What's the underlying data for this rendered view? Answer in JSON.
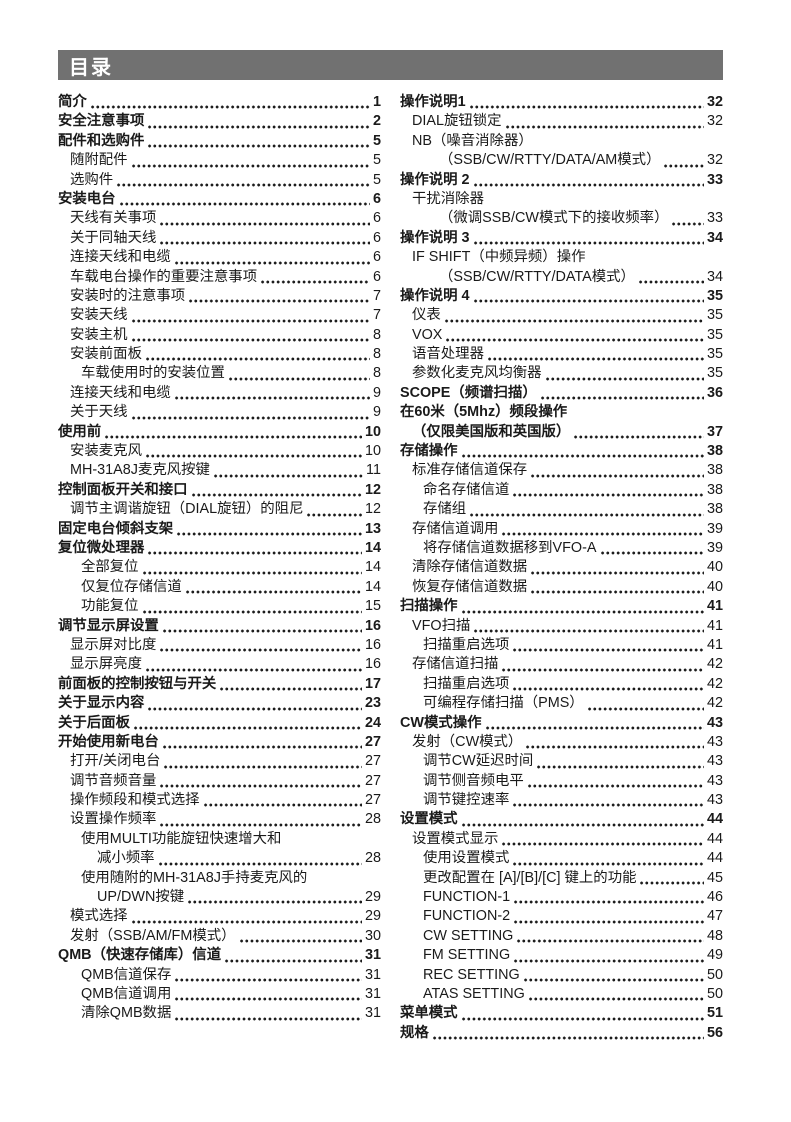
{
  "header": {
    "title": "目录",
    "bar_color": "#717171",
    "text_color": "#ffffff"
  },
  "toc": {
    "left": [
      {
        "label": "简介",
        "page": "1",
        "level": 0,
        "bold": true
      },
      {
        "label": "安全注意事项",
        "page": "2",
        "level": 0,
        "bold": true
      },
      {
        "label": "配件和选购件",
        "page": "5",
        "level": 0,
        "bold": true
      },
      {
        "label": "随附配件",
        "page": "5",
        "level": 1,
        "bold": false
      },
      {
        "label": "选购件",
        "page": "5",
        "level": 1,
        "bold": false
      },
      {
        "label": "安装电台",
        "page": "6",
        "level": 0,
        "bold": true
      },
      {
        "label": "天线有关事项",
        "page": "6",
        "level": 1,
        "bold": false
      },
      {
        "label": "关于同轴天线",
        "page": "6",
        "level": 1,
        "bold": false
      },
      {
        "label": "连接天线和电缆",
        "page": "6",
        "level": 1,
        "bold": false
      },
      {
        "label": "车载电台操作的重要注意事项",
        "page": "6",
        "level": 1,
        "bold": false
      },
      {
        "label": "安装时的注意事项",
        "page": "7",
        "level": 1,
        "bold": false
      },
      {
        "label": "安装天线",
        "page": "7",
        "level": 1,
        "bold": false
      },
      {
        "label": "安装主机",
        "page": "8",
        "level": 1,
        "bold": false
      },
      {
        "label": "安装前面板",
        "page": "8",
        "level": 1,
        "bold": false
      },
      {
        "label": "车载使用时的安装位置",
        "page": "8",
        "level": 2,
        "bold": false
      },
      {
        "label": "连接天线和电缆",
        "page": "9",
        "level": 1,
        "bold": false
      },
      {
        "label": "关于天线",
        "page": "9",
        "level": 1,
        "bold": false
      },
      {
        "label": "使用前",
        "page": "10",
        "level": 0,
        "bold": true
      },
      {
        "label": "安装麦克风",
        "page": "10",
        "level": 1,
        "bold": false
      },
      {
        "label": "MH-31A8J麦克风按键",
        "page": "11",
        "level": 1,
        "bold": false
      },
      {
        "label": "控制面板开关和接口",
        "page": "12",
        "level": 0,
        "bold": true
      },
      {
        "label": "调节主调谐旋钮（DIAL旋钮）的阻尼",
        "page": "12",
        "level": 1,
        "bold": false
      },
      {
        "label": "固定电台倾斜支架",
        "page": "13",
        "level": 0,
        "bold": true
      },
      {
        "label": "复位微处理器",
        "page": "14",
        "level": 0,
        "bold": true
      },
      {
        "label": "全部复位",
        "page": "14",
        "level": 2,
        "bold": false
      },
      {
        "label": "仅复位存储信道",
        "page": "14",
        "level": 2,
        "bold": false
      },
      {
        "label": "功能复位",
        "page": "15",
        "level": 2,
        "bold": false
      },
      {
        "label": "调节显示屏设置",
        "page": "16",
        "level": 0,
        "bold": true
      },
      {
        "label": "显示屏对比度",
        "page": "16",
        "level": 1,
        "bold": false
      },
      {
        "label": "显示屏亮度",
        "page": "16",
        "level": 1,
        "bold": false
      },
      {
        "label": "前面板的控制按钮与开关",
        "page": "17",
        "level": 0,
        "bold": true
      },
      {
        "label": "关于显示内容",
        "page": "23",
        "level": 0,
        "bold": true
      },
      {
        "label": "关于后面板",
        "page": "24",
        "level": 0,
        "bold": true
      },
      {
        "label": "开始使用新电台",
        "page": "27",
        "level": 0,
        "bold": true
      },
      {
        "label": "打开/关闭电台",
        "page": "27",
        "level": 1,
        "bold": false
      },
      {
        "label": "调节音频音量",
        "page": "27",
        "level": 1,
        "bold": false
      },
      {
        "label": "操作频段和模式选择",
        "page": "27",
        "level": 1,
        "bold": false
      },
      {
        "label": "设置操作频率",
        "page": "28",
        "level": 1,
        "bold": false
      },
      {
        "label": "使用MULTI功能旋钮快速增大和",
        "page": null,
        "level": 2,
        "bold": false
      },
      {
        "label": "减小频率",
        "page": "28",
        "level": 3,
        "bold": false
      },
      {
        "label": "使用随附的MH-31A8J手持麦克风的",
        "page": null,
        "level": 2,
        "bold": false
      },
      {
        "label": "UP/DWN按键",
        "page": "29",
        "level": 3,
        "bold": false
      },
      {
        "label": "模式选择",
        "page": "29",
        "level": 1,
        "bold": false
      },
      {
        "label": "发射（SSB/AM/FM模式）",
        "page": "30",
        "level": 1,
        "bold": false
      },
      {
        "label": "QMB（快速存储库）信道",
        "page": "31",
        "level": 0,
        "bold": true
      },
      {
        "label": "QMB信道保存",
        "page": "31",
        "level": 2,
        "bold": false
      },
      {
        "label": "QMB信道调用",
        "page": "31",
        "level": 2,
        "bold": false
      },
      {
        "label": "清除QMB数据",
        "page": "31",
        "level": 2,
        "bold": false
      }
    ],
    "right": [
      {
        "label": "操作说明1",
        "page": "32",
        "level": 0,
        "bold": true
      },
      {
        "label": "DIAL旋钮锁定",
        "page": "32",
        "level": 1,
        "bold": false
      },
      {
        "label": "NB（噪音消除器）",
        "page": null,
        "level": 1,
        "bold": false
      },
      {
        "label": "（SSB/CW/RTTY/DATA/AM模式）",
        "page": "32",
        "level": 3,
        "bold": false
      },
      {
        "label": "操作说明 2",
        "page": "33",
        "level": 0,
        "bold": true
      },
      {
        "label": "干扰消除器",
        "page": null,
        "level": 1,
        "bold": false
      },
      {
        "label": "（微调SSB/CW模式下的接收频率）",
        "page": "33",
        "level": 3,
        "bold": false
      },
      {
        "label": "操作说明 3",
        "page": "34",
        "level": 0,
        "bold": true
      },
      {
        "label": "IF SHIFT（中频异频）操作",
        "page": null,
        "level": 1,
        "bold": false
      },
      {
        "label": "（SSB/CW/RTTY/DATA模式）",
        "page": "34",
        "level": 3,
        "bold": false
      },
      {
        "label": "操作说明 4",
        "page": "35",
        "level": 0,
        "bold": true
      },
      {
        "label": "仪表",
        "page": "35",
        "level": 1,
        "bold": false
      },
      {
        "label": "VOX",
        "page": "35",
        "level": 1,
        "bold": false
      },
      {
        "label": "语音处理器",
        "page": "35",
        "level": 1,
        "bold": false
      },
      {
        "label": "参数化麦克风均衡器",
        "page": "35",
        "level": 1,
        "bold": false
      },
      {
        "label": "SCOPE（频谱扫描）",
        "page": "36",
        "level": 0,
        "bold": true
      },
      {
        "label": "在60米（5Mhz）频段操作",
        "page": null,
        "level": 0,
        "bold": true
      },
      {
        "label": "（仅限美国版和英国版）",
        "page": "37",
        "level": 1,
        "bold": true
      },
      {
        "label": "存储操作",
        "page": "38",
        "level": 0,
        "bold": true
      },
      {
        "label": "标准存储信道保存",
        "page": "38",
        "level": 1,
        "bold": false
      },
      {
        "label": "命名存储信道",
        "page": "38",
        "level": 2,
        "bold": false
      },
      {
        "label": "存储组",
        "page": "38",
        "level": 2,
        "bold": false
      },
      {
        "label": "存储信道调用",
        "page": "39",
        "level": 1,
        "bold": false
      },
      {
        "label": "将存储信道数据移到VFO-A",
        "page": "39",
        "level": 2,
        "bold": false
      },
      {
        "label": "清除存储信道数据",
        "page": "40",
        "level": 1,
        "bold": false
      },
      {
        "label": "恢复存储信道数据",
        "page": "40",
        "level": 1,
        "bold": false
      },
      {
        "label": "扫描操作",
        "page": "41",
        "level": 0,
        "bold": true
      },
      {
        "label": "VFO扫描",
        "page": "41",
        "level": 1,
        "bold": false
      },
      {
        "label": "扫描重启选项",
        "page": "41",
        "level": 2,
        "bold": false
      },
      {
        "label": "存储信道扫描",
        "page": "42",
        "level": 1,
        "bold": false
      },
      {
        "label": "扫描重启选项",
        "page": "42",
        "level": 2,
        "bold": false
      },
      {
        "label": "可编程存储扫描（PMS）",
        "page": "42",
        "level": 2,
        "bold": false
      },
      {
        "label": "CW模式操作",
        "page": "43",
        "level": 0,
        "bold": true
      },
      {
        "label": "发射（CW模式）",
        "page": "43",
        "level": 1,
        "bold": false
      },
      {
        "label": "调节CW延迟时间",
        "page": "43",
        "level": 2,
        "bold": false
      },
      {
        "label": "调节侧音频电平",
        "page": "43",
        "level": 2,
        "bold": false
      },
      {
        "label": "调节键控速率",
        "page": "43",
        "level": 2,
        "bold": false
      },
      {
        "label": "设置模式",
        "page": "44",
        "level": 0,
        "bold": true
      },
      {
        "label": "设置模式显示",
        "page": "44",
        "level": 1,
        "bold": false
      },
      {
        "label": "使用设置模式",
        "page": "44",
        "level": 2,
        "bold": false
      },
      {
        "label": "更改配置在 [A]/[B]/[C] 键上的功能",
        "page": "45",
        "level": 2,
        "bold": false
      },
      {
        "label": "FUNCTION-1",
        "page": "46",
        "level": 2,
        "bold": false
      },
      {
        "label": "FUNCTION-2",
        "page": "47",
        "level": 2,
        "bold": false
      },
      {
        "label": "CW SETTING",
        "page": "48",
        "level": 2,
        "bold": false
      },
      {
        "label": "FM SETTING",
        "page": "49",
        "level": 2,
        "bold": false
      },
      {
        "label": "REC SETTING",
        "page": "50",
        "level": 2,
        "bold": false
      },
      {
        "label": "ATAS SETTING",
        "page": "50",
        "level": 2,
        "bold": false
      },
      {
        "label": "菜单模式",
        "page": "51",
        "level": 0,
        "bold": true
      },
      {
        "label": "规格",
        "page": "56",
        "level": 0,
        "bold": true
      }
    ]
  }
}
